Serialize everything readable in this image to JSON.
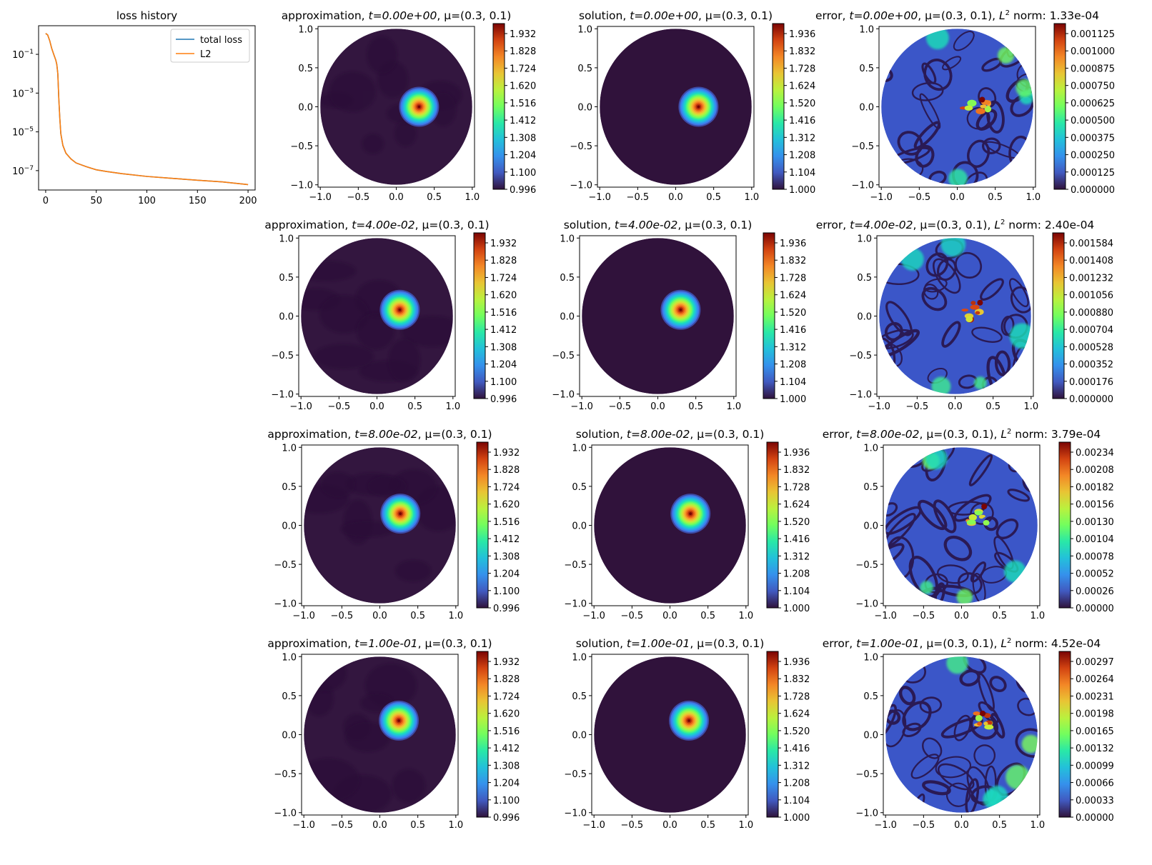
{
  "figure": {
    "title": ""
  },
  "colors": {
    "total_loss": "#1f77b4",
    "l2": "#ff7f0e",
    "turbo_dark": "#30123b",
    "turbo_mid": "#a2fc3c",
    "turbo_hot": "#7a0403"
  },
  "chart_data": [
    {
      "type": "line",
      "title": "loss history",
      "xlabel": "",
      "ylabel": "",
      "yscale": "log",
      "xlim": [
        -7,
        207
      ],
      "ylim": [
        1e-08,
        3
      ],
      "xticks": [
        "0",
        "50",
        "100",
        "150",
        "200"
      ],
      "yticks": [
        {
          "base": "10",
          "exp": "−1",
          "value": 0.1
        },
        {
          "base": "10",
          "exp": "−3",
          "value": 0.001
        },
        {
          "base": "10",
          "exp": "−5",
          "value": 1e-05
        },
        {
          "base": "10",
          "exp": "−7",
          "value": 1e-07
        }
      ],
      "legend": {
        "location": "top-right",
        "entries": [
          "total loss",
          "L2"
        ]
      },
      "series": [
        {
          "name": "total loss",
          "x": [
            0,
            2,
            4,
            6,
            8,
            10,
            11,
            12,
            13,
            14,
            15,
            17,
            20,
            25,
            30,
            40,
            50,
            60,
            75,
            100,
            125,
            150,
            175,
            200
          ],
          "y": [
            1.2,
            1.0,
            0.5,
            0.2,
            0.1,
            0.05,
            0.03,
            0.01,
            0.0005,
            5e-05,
            8e-06,
            2e-06,
            8e-07,
            4e-07,
            2.5e-07,
            1.6e-07,
            1.1e-07,
            9e-08,
            7e-08,
            5e-08,
            4e-08,
            3.2e-08,
            2.6e-08,
            1.9e-08
          ]
        },
        {
          "name": "L2",
          "x": [
            0,
            2,
            4,
            6,
            8,
            10,
            11,
            12,
            13,
            14,
            15,
            17,
            20,
            25,
            30,
            40,
            50,
            60,
            75,
            100,
            125,
            150,
            175,
            200
          ],
          "y": [
            1.2,
            1.0,
            0.5,
            0.2,
            0.1,
            0.05,
            0.03,
            0.01,
            0.0005,
            5e-05,
            8e-06,
            2e-06,
            8e-07,
            4e-07,
            2.5e-07,
            1.6e-07,
            1.1e-07,
            9e-08,
            7e-08,
            5e-08,
            4e-08,
            3.2e-08,
            2.6e-08,
            1.9e-08
          ]
        }
      ]
    },
    {
      "type": "heatmap",
      "domain": "disk",
      "axis_ticks": [
        "−1.0",
        "−0.5",
        "0.0",
        "0.5",
        "1.0"
      ],
      "xlim": [
        -1.03,
        1.03
      ],
      "ylim": [
        -1.03,
        1.03
      ],
      "colormap": "turbo",
      "rows": [
        {
          "t_label": "t=0.00e+00",
          "approximation": {
            "prefix": "approximation, ",
            "suffix": ", μ=(0.3, 0.1)",
            "peak": [
              0.3,
              0.0
            ],
            "colorbar_ticks": [
              "1.932",
              "1.828",
              "1.724",
              "1.620",
              "1.516",
              "1.412",
              "1.308",
              "1.204",
              "1.100",
              "0.996"
            ]
          },
          "solution": {
            "prefix": "solution, ",
            "suffix": ", μ=(0.3, 0.1)",
            "peak": [
              0.3,
              0.0
            ],
            "colorbar_ticks": [
              "1.936",
              "1.832",
              "1.728",
              "1.624",
              "1.520",
              "1.416",
              "1.312",
              "1.208",
              "1.104",
              "1.000"
            ]
          },
          "error": {
            "prefix": "error, ",
            "suffix": ", μ=(0.3, 0.1), ",
            "norm_label": "norm: 1.33e-04",
            "peak": [
              0.3,
              0.0
            ],
            "colorbar_ticks": [
              "0.001125",
              "0.001000",
              "0.000875",
              "0.000750",
              "0.000625",
              "0.000500",
              "0.000375",
              "0.000250",
              "0.000125",
              "0.000000"
            ]
          }
        },
        {
          "t_label": "t=4.00e-02",
          "approximation": {
            "prefix": "approximation, ",
            "suffix": ", μ=(0.3, 0.1)",
            "peak": [
              0.3,
              0.08
            ],
            "colorbar_ticks": [
              "1.932",
              "1.828",
              "1.724",
              "1.620",
              "1.516",
              "1.412",
              "1.308",
              "1.204",
              "1.100",
              "0.996"
            ]
          },
          "solution": {
            "prefix": "solution, ",
            "suffix": ", μ=(0.3, 0.1)",
            "peak": [
              0.3,
              0.08
            ],
            "colorbar_ticks": [
              "1.936",
              "1.832",
              "1.728",
              "1.624",
              "1.520",
              "1.416",
              "1.312",
              "1.208",
              "1.104",
              "1.000"
            ]
          },
          "error": {
            "prefix": "error, ",
            "suffix": ", μ=(0.3, 0.1), ",
            "norm_label": "norm: 2.40e-04",
            "peak": [
              0.3,
              0.08
            ],
            "colorbar_ticks": [
              "0.001584",
              "0.001408",
              "0.001232",
              "0.001056",
              "0.000880",
              "0.000704",
              "0.000528",
              "0.000352",
              "0.000176",
              "0.000000"
            ]
          }
        },
        {
          "t_label": "t=8.00e-02",
          "approximation": {
            "prefix": "approximation, ",
            "suffix": ", μ=(0.3, 0.1)",
            "peak": [
              0.27,
              0.15
            ],
            "colorbar_ticks": [
              "1.932",
              "1.828",
              "1.724",
              "1.620",
              "1.516",
              "1.412",
              "1.308",
              "1.204",
              "1.100",
              "0.996"
            ]
          },
          "solution": {
            "prefix": "solution, ",
            "suffix": ", μ=(0.3, 0.1)",
            "peak": [
              0.27,
              0.15
            ],
            "colorbar_ticks": [
              "1.936",
              "1.832",
              "1.728",
              "1.624",
              "1.520",
              "1.416",
              "1.312",
              "1.208",
              "1.104",
              "1.000"
            ]
          },
          "error": {
            "prefix": "error, ",
            "suffix": ", μ=(0.3, 0.1), ",
            "norm_label": "norm: 3.79e-04",
            "peak": [
              0.27,
              0.15
            ],
            "colorbar_ticks": [
              "0.00234",
              "0.00208",
              "0.00182",
              "0.00156",
              "0.00130",
              "0.00104",
              "0.00078",
              "0.00052",
              "0.00026",
              "0.00000"
            ]
          }
        },
        {
          "t_label": "t=1.00e-01",
          "approximation": {
            "prefix": "approximation, ",
            "suffix": ", μ=(0.3, 0.1)",
            "peak": [
              0.25,
              0.18
            ],
            "colorbar_ticks": [
              "1.932",
              "1.828",
              "1.724",
              "1.620",
              "1.516",
              "1.412",
              "1.308",
              "1.204",
              "1.100",
              "0.996"
            ]
          },
          "solution": {
            "prefix": "solution, ",
            "suffix": ", μ=(0.3, 0.1)",
            "peak": [
              0.25,
              0.18
            ],
            "colorbar_ticks": [
              "1.936",
              "1.832",
              "1.728",
              "1.624",
              "1.520",
              "1.416",
              "1.312",
              "1.208",
              "1.104",
              "1.000"
            ]
          },
          "error": {
            "prefix": "error, ",
            "suffix": ", μ=(0.3, 0.1), ",
            "norm_label": "norm: 4.52e-04",
            "peak": [
              0.25,
              0.18
            ],
            "colorbar_ticks": [
              "0.00297",
              "0.00264",
              "0.00231",
              "0.00198",
              "0.00165",
              "0.00132",
              "0.00099",
              "0.00066",
              "0.00033",
              "0.00000"
            ]
          }
        }
      ]
    }
  ]
}
